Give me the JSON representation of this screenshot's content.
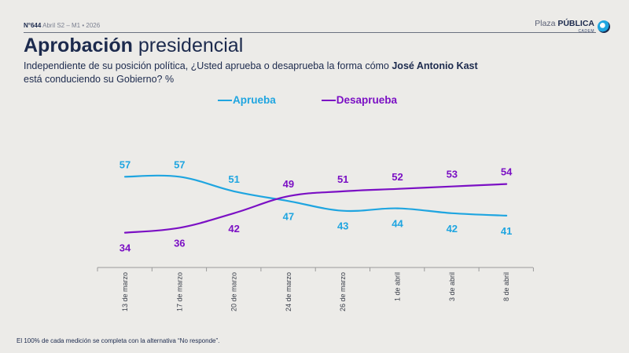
{
  "header": {
    "number": "N°644",
    "period": "Abril S2 – M1 • 2026",
    "logo_light": "Plaza",
    "logo_bold": "PÚBLICA",
    "logo_sub": "CADEM"
  },
  "title_bold": "Aprobación",
  "title_rest": "presidencial",
  "question": {
    "before": "Independiente de su posición política, ¿Usted aprueba o desaprueba la forma cómo ",
    "name": "José Antonio Kast",
    "line2": "está conduciendo su Gobierno? %"
  },
  "footnote": "El 100% de cada medición se completa con la alternativa “No responde”.",
  "colors": {
    "aprueba": "#1fa5e0",
    "desaprueba": "#7b10c4",
    "axis": "#9a9a9a",
    "text_dark": "#1c2a4d"
  },
  "chart_data": {
    "type": "line",
    "categories": [
      "13 de marzo",
      "17 de marzo",
      "20 de marzo",
      "24 de marzo",
      "26 de marzo",
      "1 de abril",
      "3 de abril",
      "8 de abril"
    ],
    "series": [
      {
        "name": "Aprueba",
        "color": "#1fa5e0",
        "values": [
          57,
          57,
          51,
          47,
          43,
          44,
          42,
          41
        ]
      },
      {
        "name": "Desaprueba",
        "color": "#7b10c4",
        "values": [
          34,
          36,
          42,
          49,
          51,
          52,
          53,
          54
        ]
      }
    ],
    "legend_position": "top",
    "grid": false
  }
}
